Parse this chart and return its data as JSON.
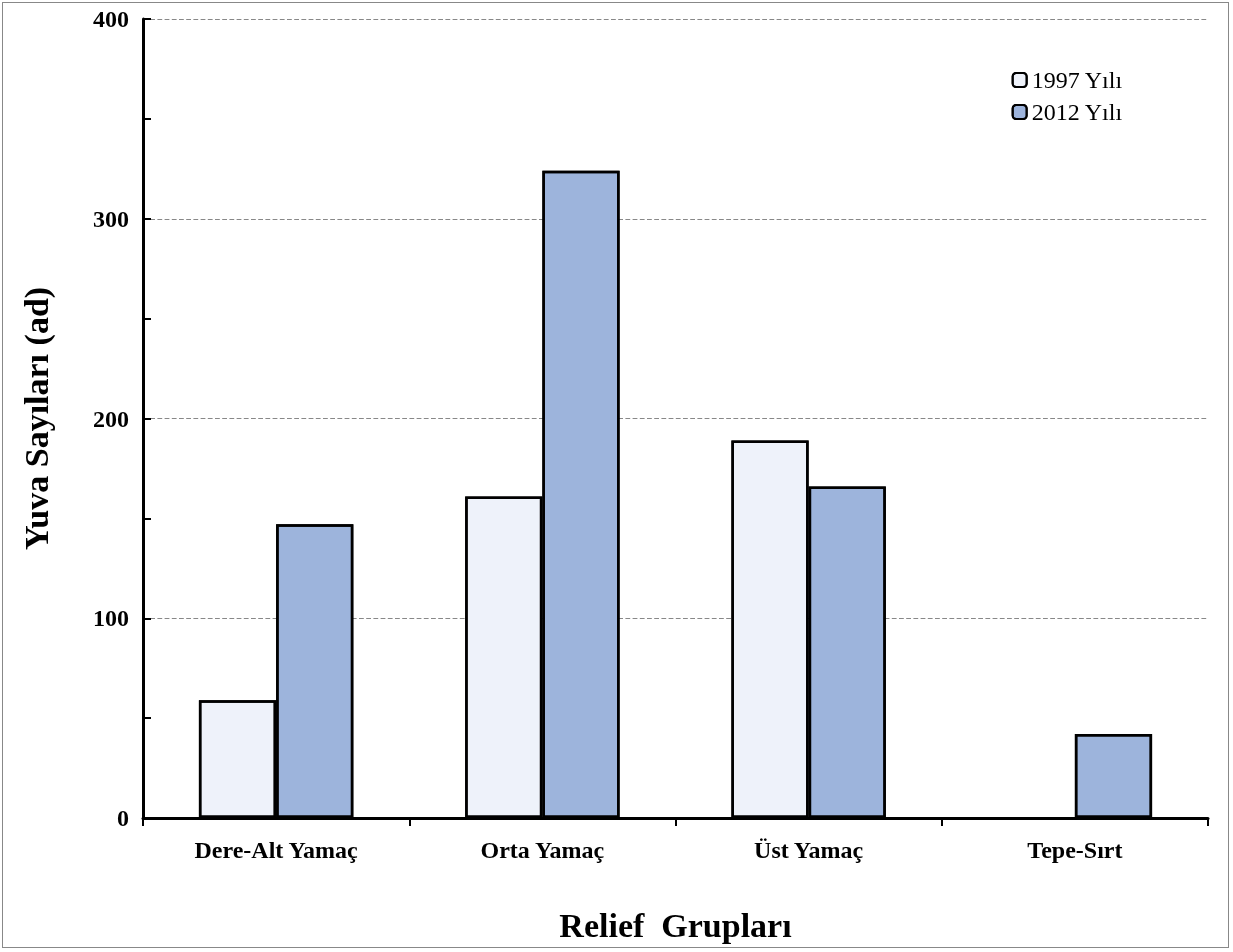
{
  "chart_data": {
    "type": "bar",
    "xlabel": "Relief  Grupları",
    "ylabel": "Yuva Sayıları (ad)",
    "categories": [
      "Dere-Alt Yamaç",
      "Orta Yamaç",
      "Üst Yamaç",
      "Tepe-Sırt"
    ],
    "series": [
      {
        "name": "1997 Yılı",
        "color": "#eef2fa",
        "values": [
          59,
          161,
          189,
          null
        ]
      },
      {
        "name": "2012 Yılı",
        "color": "#9db4dc",
        "values": [
          147,
          324,
          166,
          42
        ]
      }
    ],
    "ylim": [
      0,
      400
    ],
    "yticks": [
      0,
      100,
      200,
      300,
      400
    ],
    "grid": "y",
    "legend": "top right"
  }
}
